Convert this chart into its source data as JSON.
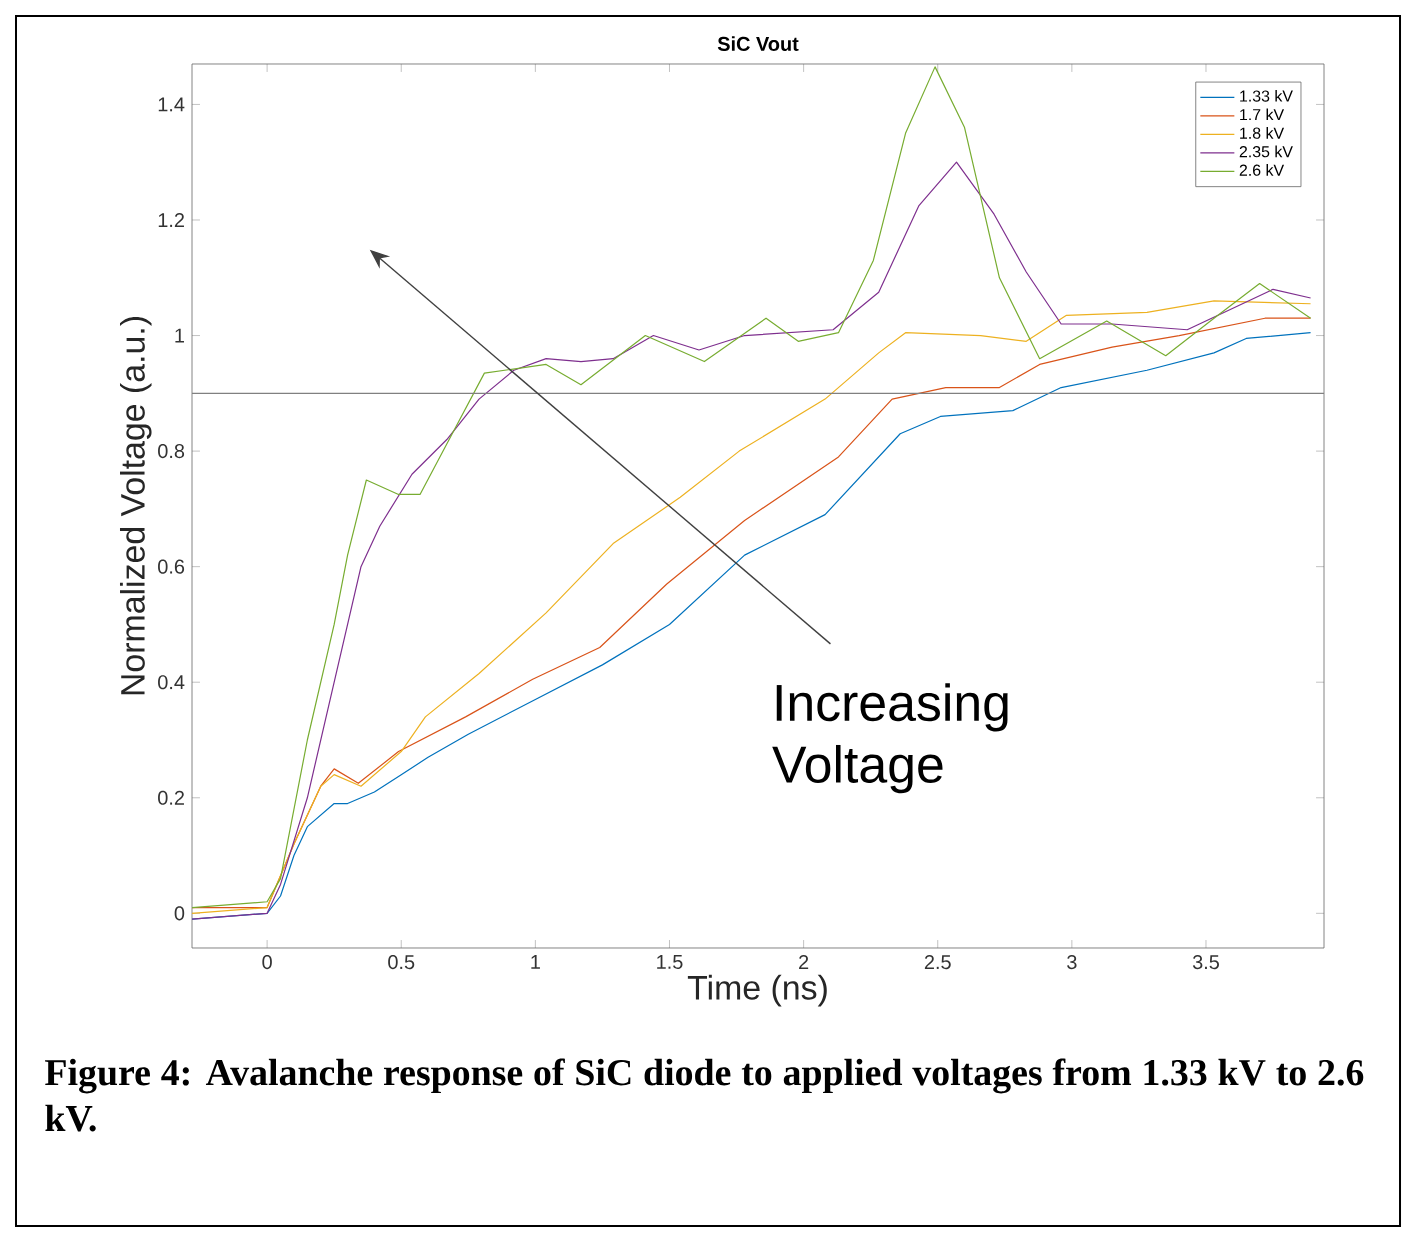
{
  "chart_data": {
    "type": "line",
    "title": "SiC Vout",
    "xlabel": "Time (ns)",
    "ylabel": "Normalized Voltage (a.u.)",
    "xlim": [
      -0.28,
      3.94
    ],
    "ylim": [
      -0.06,
      1.47
    ],
    "xticks": [
      0,
      0.5,
      1,
      1.5,
      2,
      2.5,
      3,
      3.5
    ],
    "yticks": [
      0,
      0.2,
      0.4,
      0.6,
      0.8,
      1,
      1.2,
      1.4
    ],
    "legend": "top right",
    "ref_lines": [
      {
        "axis": "y",
        "value": 0.9,
        "color": "#808080"
      }
    ],
    "annotations": [
      "Increasing Voltage",
      "Figure 4:  Avalanche response of SiC diode to applied voltages from 1.33 kV to 2.6 kV."
    ],
    "series": [
      {
        "name": "1.33 kV",
        "color": "#0072bd",
        "x": [
          -0.28,
          0,
          0.05,
          0.1,
          0.15,
          0.25,
          0.3,
          0.4,
          0.5,
          0.6,
          0.75,
          1.0,
          1.25,
          1.5,
          1.78,
          2.08,
          2.36,
          2.51,
          2.78,
          2.96,
          3.28,
          3.53,
          3.65,
          3.89
        ],
        "values": [
          -0.01,
          0.0,
          0.03,
          0.1,
          0.15,
          0.19,
          0.19,
          0.21,
          0.24,
          0.27,
          0.31,
          0.37,
          0.43,
          0.5,
          0.62,
          0.69,
          0.83,
          0.86,
          0.87,
          0.91,
          0.94,
          0.97,
          0.995,
          1.005
        ]
      },
      {
        "name": "1.7 kV",
        "color": "#d95319",
        "x": [
          -0.28,
          0,
          0.1,
          0.2,
          0.25,
          0.34,
          0.49,
          0.74,
          0.99,
          1.24,
          1.49,
          1.78,
          2.13,
          2.33,
          2.53,
          2.73,
          2.88,
          3.15,
          3.4,
          3.72,
          3.89
        ],
        "values": [
          0.01,
          0.01,
          0.12,
          0.22,
          0.25,
          0.225,
          0.28,
          0.34,
          0.405,
          0.46,
          0.57,
          0.68,
          0.79,
          0.89,
          0.91,
          0.91,
          0.95,
          0.98,
          1.0,
          1.03,
          1.03
        ]
      },
      {
        "name": "1.8 kV",
        "color": "#edb120",
        "x": [
          -0.28,
          0,
          0.1,
          0.2,
          0.25,
          0.35,
          0.5,
          0.59,
          0.79,
          1.04,
          1.29,
          1.54,
          1.76,
          2.08,
          2.28,
          2.38,
          2.66,
          2.83,
          2.98,
          3.28,
          3.53,
          3.89
        ],
        "values": [
          0.0,
          0.01,
          0.12,
          0.22,
          0.24,
          0.22,
          0.28,
          0.34,
          0.415,
          0.52,
          0.64,
          0.72,
          0.8,
          0.89,
          0.97,
          1.005,
          1.0,
          0.99,
          1.035,
          1.04,
          1.06,
          1.055
        ]
      },
      {
        "name": "2.35 kV",
        "color": "#7e2f8e",
        "x": [
          -0.28,
          0,
          0.05,
          0.15,
          0.25,
          0.35,
          0.42,
          0.54,
          0.67,
          0.79,
          0.92,
          1.04,
          1.17,
          1.29,
          1.44,
          1.61,
          1.78,
          2.11,
          2.28,
          2.43,
          2.57,
          2.71,
          2.83,
          2.96,
          3.15,
          3.43,
          3.75,
          3.89
        ],
        "values": [
          -0.01,
          0.0,
          0.05,
          0.2,
          0.4,
          0.6,
          0.67,
          0.76,
          0.82,
          0.89,
          0.94,
          0.96,
          0.955,
          0.96,
          1.0,
          0.975,
          1.0,
          1.01,
          1.075,
          1.225,
          1.3,
          1.21,
          1.11,
          1.02,
          1.02,
          1.01,
          1.08,
          1.065
        ]
      },
      {
        "name": "2.6 kV",
        "color": "#77ac30",
        "x": [
          -0.28,
          0,
          0.05,
          0.15,
          0.25,
          0.3,
          0.37,
          0.49,
          0.57,
          0.69,
          0.81,
          1.04,
          1.17,
          1.41,
          1.63,
          1.86,
          1.98,
          2.13,
          2.26,
          2.38,
          2.49,
          2.6,
          2.73,
          2.88,
          3.13,
          3.35,
          3.53,
          3.7,
          3.89
        ],
        "values": [
          0.01,
          0.02,
          0.06,
          0.3,
          0.5,
          0.62,
          0.75,
          0.725,
          0.725,
          0.83,
          0.935,
          0.95,
          0.915,
          1.0,
          0.955,
          1.03,
          0.99,
          1.005,
          1.13,
          1.35,
          1.465,
          1.36,
          1.1,
          0.96,
          1.025,
          0.965,
          1.03,
          1.09,
          1.03
        ]
      }
    ]
  }
}
